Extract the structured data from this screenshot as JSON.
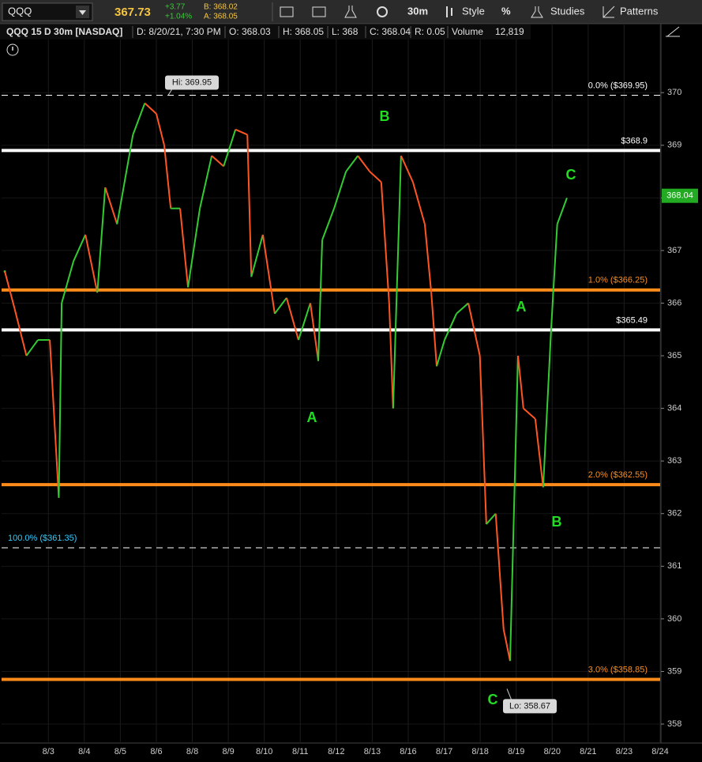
{
  "toolbar": {
    "symbol": "QQQ",
    "last": "367.73",
    "change": "+3.77",
    "change_pct": "+1.04%",
    "bid": "B: 368.02",
    "ask": "A: 368.05",
    "interval": "30m",
    "style": "Style",
    "studies": "Studies",
    "patterns": "Patterns"
  },
  "header": {
    "fields": [
      "QQQ 15 D 30m [NASDAQ]",
      "D: 8/20/21, 7:30 PM",
      "O: 368.03",
      "H: 368.05",
      "L: 368",
      "C: 368.04",
      "R: 0.05",
      "Volume",
      "12,819"
    ]
  },
  "chart_data": {
    "type": "line",
    "x": [
      -1.21,
      -0.94,
      -0.61,
      -0.29,
      0.04,
      0.29,
      0.37,
      0.7,
      1.03,
      1.36,
      1.58,
      1.91,
      2.35,
      2.68,
      3.0,
      3.22,
      3.4,
      3.66,
      3.88,
      4.21,
      4.54,
      4.87,
      5.2,
      5.53,
      5.64,
      5.96,
      6.29,
      6.62,
      6.95,
      7.28,
      7.5,
      7.61,
      7.94,
      8.27,
      8.6,
      8.93,
      9.25,
      9.47,
      9.58,
      9.8,
      10.13,
      10.46,
      10.64,
      10.79,
      11.01,
      11.34,
      11.67,
      11.99,
      12.17,
      12.43,
      12.65,
      12.83,
      13.05,
      13.2,
      13.53,
      13.75,
      13.97,
      14.14,
      14.41
    ],
    "series": [
      {
        "name": "QQQ",
        "up_color": "#33cc33",
        "down_color": "#ff5522",
        "values": [
          366.6,
          365.9,
          365.0,
          365.3,
          365.3,
          362.3,
          366.0,
          366.8,
          367.3,
          366.2,
          368.2,
          367.5,
          369.2,
          369.8,
          369.6,
          369.0,
          367.8,
          367.8,
          366.3,
          367.8,
          368.8,
          368.6,
          369.3,
          369.2,
          366.5,
          367.3,
          365.8,
          366.1,
          365.3,
          366.0,
          364.9,
          367.2,
          367.8,
          368.5,
          368.8,
          368.5,
          368.3,
          366.0,
          364.0,
          368.8,
          368.3,
          367.5,
          366.2,
          364.8,
          365.3,
          365.8,
          366.0,
          365.0,
          361.8,
          362.0,
          359.8,
          359.2,
          365.0,
          364.0,
          363.8,
          362.5,
          365.5,
          367.5,
          368.0
        ]
      }
    ],
    "xlim": [
      -1.3,
      17
    ],
    "xticks": [
      {
        "value": 0,
        "label": "8/3"
      },
      {
        "value": 1,
        "label": "8/4"
      },
      {
        "value": 2,
        "label": "8/5"
      },
      {
        "value": 3,
        "label": "8/6"
      },
      {
        "value": 4,
        "label": "8/8"
      },
      {
        "value": 5,
        "label": "8/9"
      },
      {
        "value": 6,
        "label": "8/10"
      },
      {
        "value": 7,
        "label": "8/11"
      },
      {
        "value": 8,
        "label": "8/12"
      },
      {
        "value": 9,
        "label": "8/13"
      },
      {
        "value": 10,
        "label": "8/16"
      },
      {
        "value": 11,
        "label": "8/17"
      },
      {
        "value": 12,
        "label": "8/18"
      },
      {
        "value": 13,
        "label": "8/19"
      },
      {
        "value": 14,
        "label": "8/20"
      },
      {
        "value": 15,
        "label": "8/21"
      },
      {
        "value": 16,
        "label": "8/23"
      },
      {
        "value": 17,
        "label": "8/24"
      }
    ],
    "ylim": [
      357.64,
      371.31
    ],
    "yticks": [
      358,
      359,
      360,
      361,
      362,
      363,
      364,
      365,
      366,
      367,
      368,
      369,
      370
    ],
    "levels": [
      {
        "value": 369.95,
        "label": "0.0%  ($369.95)",
        "color": "#ffffff",
        "style": "dashed"
      },
      {
        "value": 368.9,
        "label": "$368.9",
        "color": "#ffffff",
        "style": "solid"
      },
      {
        "value": 366.25,
        "label": "1.0%  ($366.25)",
        "color": "#ff8c1a",
        "style": "solid"
      },
      {
        "value": 365.49,
        "label": "$365.49",
        "color": "#ffffff",
        "style": "solid"
      },
      {
        "value": 362.55,
        "label": "2.0%  ($362.55)",
        "color": "#ff8c1a",
        "style": "solid"
      },
      {
        "value": 361.35,
        "label": "100.0%  ($361.35)",
        "color": "#ffffff",
        "style": "dashed",
        "label_color": "#33ccff",
        "label_side": "left"
      },
      {
        "value": 358.85,
        "label": "3.0%  ($358.85)",
        "color": "#ff8c1a",
        "style": "solid"
      }
    ],
    "callouts": [
      {
        "value": 369.95,
        "label": "Hi: 369.95"
      },
      {
        "value": 358.67,
        "label": "Lo: 358.67"
      }
    ],
    "last_price": 368.04,
    "annotations": [
      "B",
      "A",
      "C",
      "A",
      "B",
      "C"
    ]
  }
}
